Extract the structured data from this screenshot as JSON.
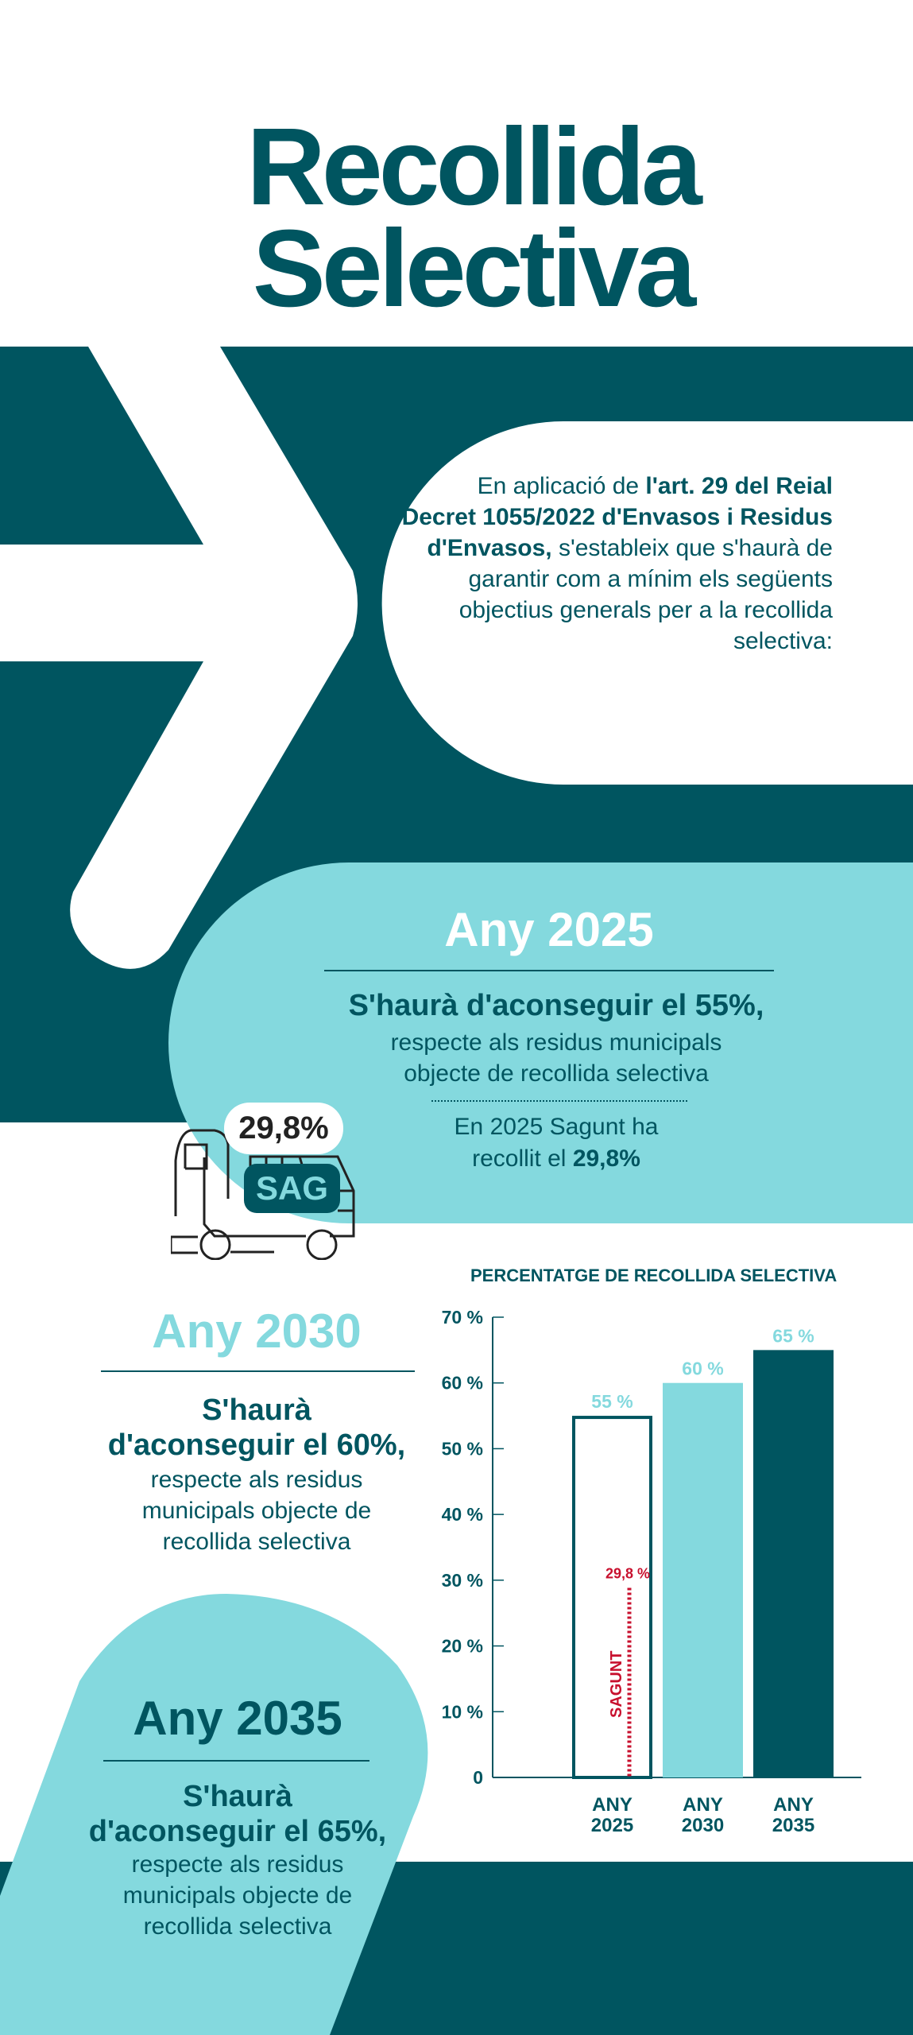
{
  "header": {
    "title_line1": "Recollida",
    "title_line2": "Selectiva"
  },
  "intro": {
    "part1": "En aplicació de ",
    "bold1": "l'art. 29 del Reial Decret 1055/2022 d'Envasos i Residus d'Envasos,",
    "part2": " s'estableix que s'haurà de garantir com a mínim els següents objectius generals per a la recollida selectiva:"
  },
  "goal2025": {
    "title": "Any 2025",
    "headline": "S'haurà d'aconseguir el 55%,",
    "line1": "respecte als residus municipals",
    "line2": "objecte de recollida selectiva",
    "note1": "En 2025 Sagunt ha",
    "note2_prefix": "recollit el ",
    "note2_value": "29,8%"
  },
  "truck": {
    "bubble": "29,8%",
    "label": "SAG"
  },
  "goal2030": {
    "title": "Any 2030",
    "headline1": "S'haurà",
    "headline2": "d'aconseguir el 60%,",
    "line1": "respecte als residus",
    "line2": "municipals objecte de",
    "line3": "recollida selectiva"
  },
  "goal2035": {
    "title": "Any 2035",
    "headline1": "S'haurà",
    "headline2": "d'aconseguir el 65%,",
    "line1": "respecte als residus",
    "line2": "municipals objecte de",
    "line3": "recollida selectiva"
  },
  "colors": {
    "dark": "#005560",
    "light": "#84d9de",
    "accent_red": "#c8102e"
  },
  "chart_data": {
    "type": "bar",
    "title": "PERCENTATGE DE RECOLLIDA SELECTIVA",
    "categories": [
      "ANY 2025",
      "ANY 2030",
      "ANY 2035"
    ],
    "category_lines": [
      [
        "ANY",
        "2025"
      ],
      [
        "ANY",
        "2030"
      ],
      [
        "ANY",
        "2035"
      ]
    ],
    "values": [
      55,
      60,
      65
    ],
    "value_labels": [
      "55 %",
      "60 %",
      "65 %"
    ],
    "bar_colors": [
      "#ffffff",
      "#84d9de",
      "#005560"
    ],
    "ylim": [
      0,
      70
    ],
    "yticks": [
      0,
      10,
      20,
      30,
      40,
      50,
      60,
      70
    ],
    "ytick_labels": [
      "0",
      "10 %",
      "20 %",
      "30 %",
      "40 %",
      "50 %",
      "60 %",
      "70 %"
    ],
    "grid": false,
    "annotation": {
      "category": "ANY 2025",
      "value": 29.8,
      "label": "29,8 %",
      "series_label": "SAGUNT"
    }
  }
}
